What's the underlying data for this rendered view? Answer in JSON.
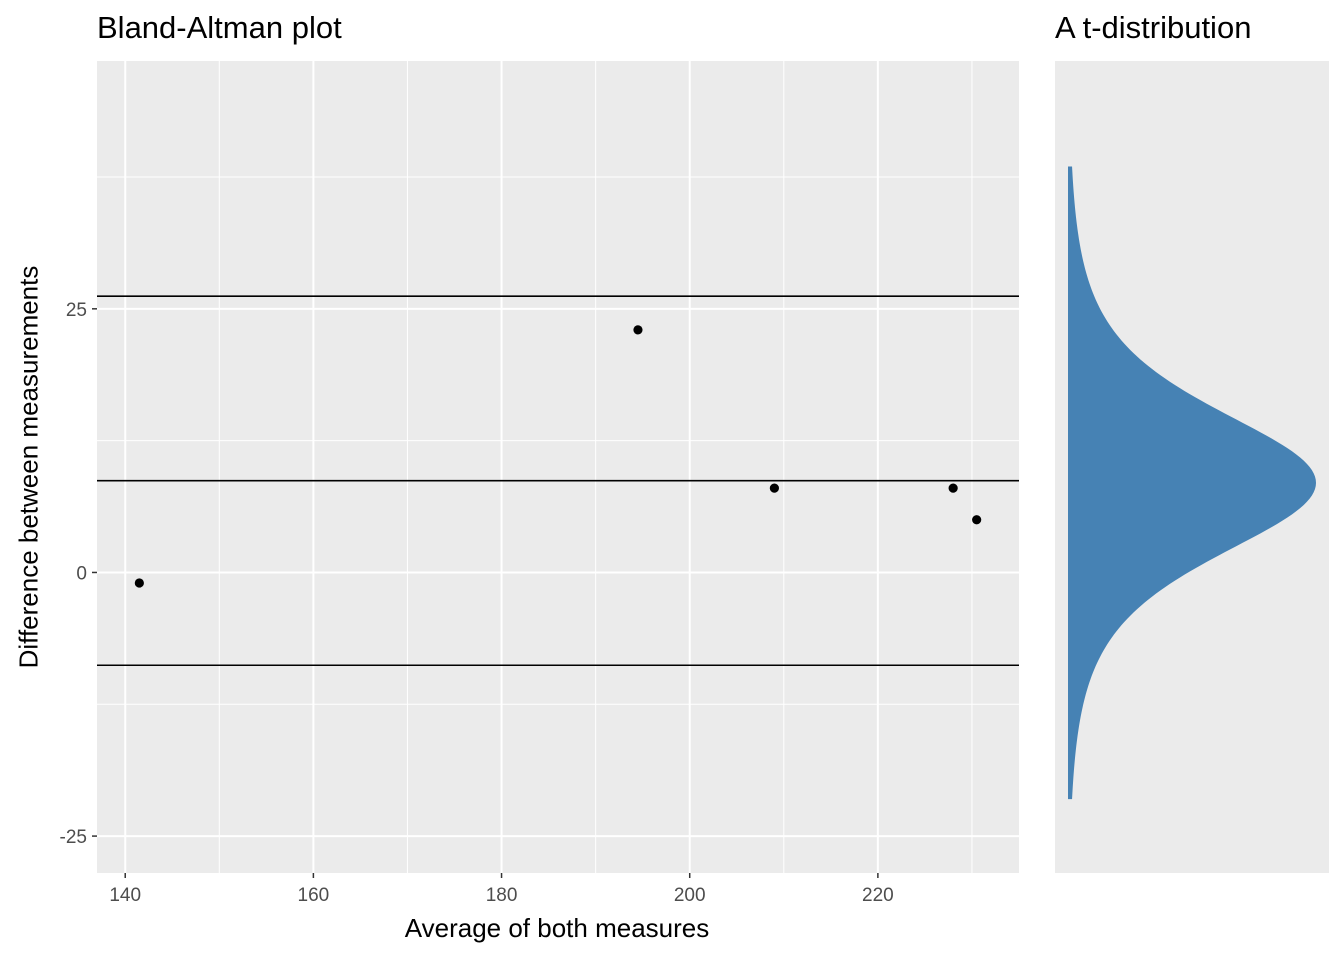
{
  "titles": {
    "left": "Bland-Altman plot",
    "right": "A t-distribution"
  },
  "axis_labels": {
    "x": "Average of both measures",
    "y": "Difference between measurements"
  },
  "colors": {
    "panel_bg": "#ebebeb",
    "grid": "#ffffff",
    "point": "#000000",
    "hline": "#000000",
    "density_fill": "#4682b4",
    "tick_text": "#4d4d4d"
  },
  "chart_data": [
    {
      "type": "scatter",
      "title": "Bland-Altman plot",
      "xlabel": "Average of both measures",
      "ylabel": "Difference between measurements",
      "xlim": [
        137,
        235
      ],
      "ylim": [
        -28.5,
        48.5
      ],
      "x_ticks": [
        140,
        160,
        180,
        200,
        220
      ],
      "y_ticks": [
        -25,
        0,
        25
      ],
      "grid": true,
      "points": [
        {
          "x": 141.5,
          "y": -1
        },
        {
          "x": 194.5,
          "y": 23
        },
        {
          "x": 209,
          "y": 8
        },
        {
          "x": 228,
          "y": 8
        },
        {
          "x": 230.5,
          "y": 5
        }
      ],
      "hlines": [
        26.2,
        8.7,
        -8.8
      ]
    },
    {
      "type": "area",
      "title": "A t-distribution",
      "orientation": "horizontal",
      "center": 8.5,
      "scale": 8.8,
      "ylim": [
        -21.5,
        38.5
      ],
      "grid": false
    }
  ]
}
